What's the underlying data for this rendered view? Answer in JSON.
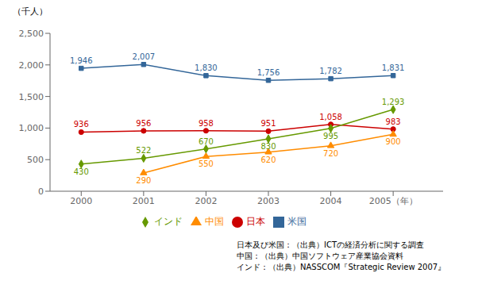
{
  "chart_data": {
    "type": "line",
    "ylabel": "（千人）",
    "x": [
      2000,
      2001,
      2002,
      2003,
      2004,
      2005
    ],
    "xlim": [
      1999.5,
      2005.8
    ],
    "xticks": [
      2000,
      2001,
      2002,
      2003,
      2004,
      {
        "value": 2005,
        "label": "2005（年）"
      }
    ],
    "ylim": [
      0,
      2500
    ],
    "yticks": [
      0,
      500,
      {
        "value": 1000,
        "label": "1,000"
      },
      {
        "value": 1500,
        "label": "1,500"
      },
      {
        "value": 2000,
        "label": "2,000"
      },
      {
        "value": 2500,
        "label": "2,500"
      }
    ],
    "grid": false,
    "legend": "bottom",
    "data_labels": true,
    "series": [
      {
        "name": "日本",
        "color": "#cc0000",
        "marker": "circle",
        "values": [
          936,
          956,
          958,
          951,
          1058,
          983
        ],
        "value_labels": [
          "936",
          "956",
          "958",
          "951",
          "1,058",
          "983"
        ]
      },
      {
        "name": "米国",
        "color": "#336699",
        "marker": "square",
        "values": [
          1946,
          2007,
          1830,
          1756,
          1782,
          1831
        ],
        "value_labels": [
          "1,946",
          "2,007",
          "1,830",
          "1,756",
          "1,782",
          "1,831"
        ]
      },
      {
        "name": "中国",
        "color": "#ff8c00",
        "marker": "triangle",
        "values": [
          null,
          290,
          550,
          620,
          720,
          900
        ],
        "value_labels": [
          null,
          "290",
          "550",
          "620",
          "720",
          "900"
        ]
      },
      {
        "name": "インド",
        "color": "#669900",
        "marker": "diamond",
        "values": [
          430,
          522,
          670,
          830,
          995,
          1293
        ],
        "value_labels": [
          "430",
          "522",
          "670",
          "830",
          "995",
          "1,293"
        ]
      }
    ],
    "annotations": [
      "日本及び米国：（出典）ICTの経済分析に関する調査",
      "中国：（出典）中国ソフトウェア産業協会資料",
      "インド：（出典）NASSCOM『Strategic Review 2007』"
    ]
  }
}
